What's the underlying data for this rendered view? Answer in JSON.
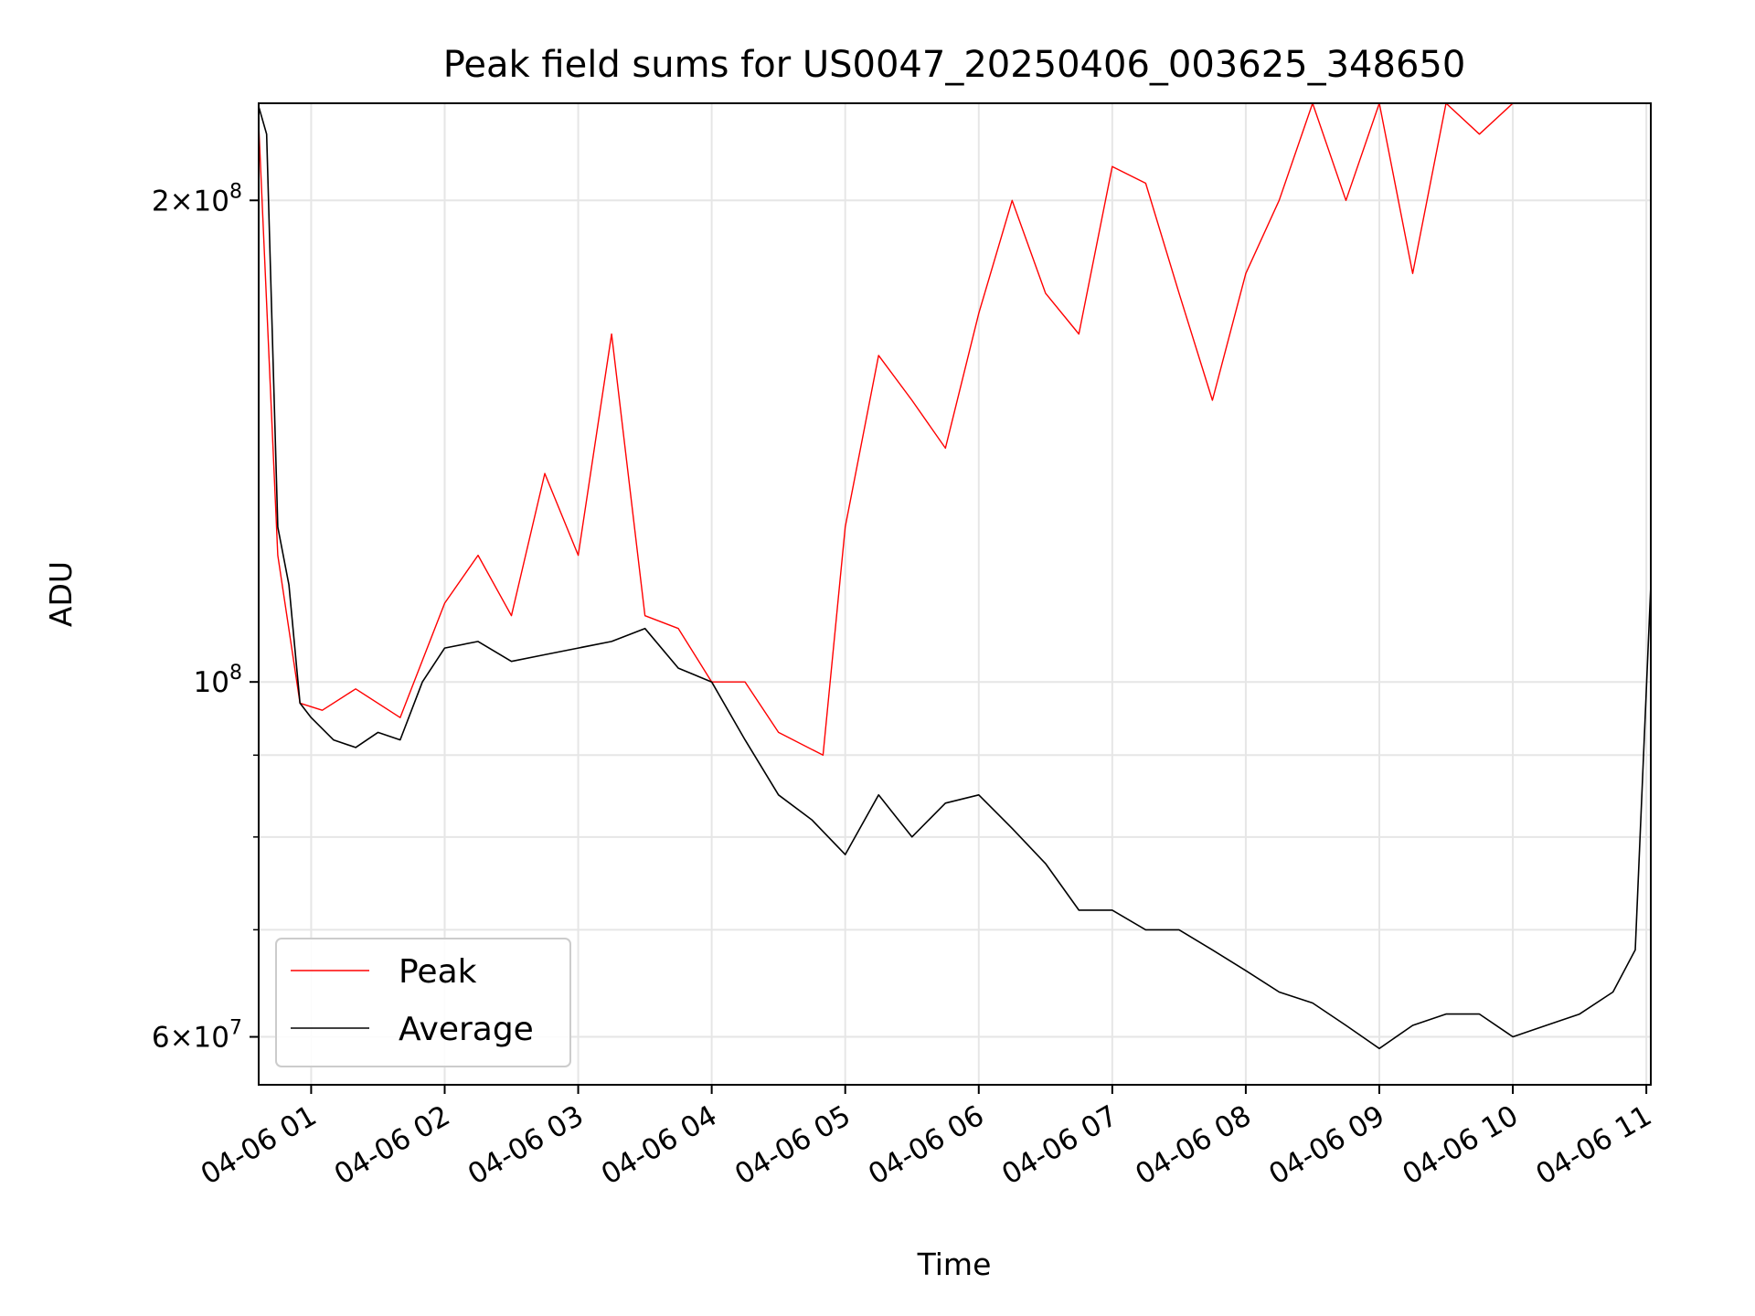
{
  "chart_data": {
    "type": "line",
    "title": "Peak field sums for US0047_20250406_003625_348650",
    "xlabel": "Time",
    "ylabel": "ADU",
    "y_scale": "log",
    "grid": true,
    "legend_placement": "lower-left",
    "x_range": [
      "2025-04-06T00:36:25",
      "2025-04-06T11:02:00"
    ],
    "ylim": [
      56000000,
      230000000
    ],
    "x_tick_labels": [
      "04-06 01",
      "04-06 02",
      "04-06 03",
      "04-06 04",
      "04-06 05",
      "04-06 06",
      "04-06 07",
      "04-06 08",
      "04-06 09",
      "04-06 10",
      "04-06 11"
    ],
    "x_ticks": [
      "2025-04-06T01:00",
      "2025-04-06T02:00",
      "2025-04-06T03:00",
      "2025-04-06T04:00",
      "2025-04-06T05:00",
      "2025-04-06T06:00",
      "2025-04-06T07:00",
      "2025-04-06T08:00",
      "2025-04-06T09:00",
      "2025-04-06T10:00",
      "2025-04-06T11:00"
    ],
    "y_major_ticks": [
      {
        "value": 60000000,
        "mantissa": "6",
        "exponent": "7"
      },
      {
        "value": 100000000,
        "mantissa": "",
        "exponent": "8"
      },
      {
        "value": 200000000,
        "mantissa": "2",
        "exponent": "8"
      }
    ],
    "y_minor_ticks": [
      70000000,
      80000000,
      90000000
    ],
    "series": [
      {
        "name": "Peak",
        "color": "#ff0000",
        "x": [
          "2025-04-06T00:36",
          "2025-04-06T00:45",
          "2025-04-06T00:55",
          "2025-04-06T01:05",
          "2025-04-06T01:20",
          "2025-04-06T01:40",
          "2025-04-06T02:00",
          "2025-04-06T02:15",
          "2025-04-06T02:30",
          "2025-04-06T02:45",
          "2025-04-06T03:00",
          "2025-04-06T03:15",
          "2025-04-06T03:30",
          "2025-04-06T03:45",
          "2025-04-06T04:00",
          "2025-04-06T04:15",
          "2025-04-06T04:30",
          "2025-04-06T04:50",
          "2025-04-06T05:00",
          "2025-04-06T05:15",
          "2025-04-06T05:30",
          "2025-04-06T05:45",
          "2025-04-06T06:00",
          "2025-04-06T06:15",
          "2025-04-06T06:30",
          "2025-04-06T06:45",
          "2025-04-06T07:00",
          "2025-04-06T07:15",
          "2025-04-06T07:30",
          "2025-04-06T07:45",
          "2025-04-06T08:00",
          "2025-04-06T08:15",
          "2025-04-06T08:30",
          "2025-04-06T08:45",
          "2025-04-06T09:00",
          "2025-04-06T09:15",
          "2025-04-06T09:30",
          "2025-04-06T09:45",
          "2025-04-06T10:00",
          "2025-04-06T10:15",
          "2025-04-06T10:30",
          "2025-04-06T10:45",
          "2025-04-06T11:00"
        ],
        "values": [
          230000000,
          120000000,
          97000000,
          96000000,
          99000000,
          95000000,
          112000000,
          120000000,
          110000000,
          135000000,
          120000000,
          165000000,
          110000000,
          108000000,
          100000000,
          100000000,
          93000000,
          90000000,
          125000000,
          160000000,
          150000000,
          140000000,
          170000000,
          200000000,
          175000000,
          165000000,
          210000000,
          205000000,
          175000000,
          150000000,
          180000000,
          200000000,
          230000000,
          200000000,
          230000000,
          180000000,
          230000000,
          220000000,
          230000000,
          230000000,
          230000000,
          230000000,
          230000000
        ]
      },
      {
        "name": "Average",
        "color": "#000000",
        "x": [
          "2025-04-06T00:36",
          "2025-04-06T00:40",
          "2025-04-06T00:45",
          "2025-04-06T00:50",
          "2025-04-06T00:55",
          "2025-04-06T01:00",
          "2025-04-06T01:10",
          "2025-04-06T01:20",
          "2025-04-06T01:30",
          "2025-04-06T01:40",
          "2025-04-06T01:50",
          "2025-04-06T02:00",
          "2025-04-06T02:15",
          "2025-04-06T02:30",
          "2025-04-06T02:45",
          "2025-04-06T03:00",
          "2025-04-06T03:15",
          "2025-04-06T03:30",
          "2025-04-06T03:45",
          "2025-04-06T04:00",
          "2025-04-06T04:15",
          "2025-04-06T04:30",
          "2025-04-06T04:45",
          "2025-04-06T05:00",
          "2025-04-06T05:15",
          "2025-04-06T05:30",
          "2025-04-06T05:45",
          "2025-04-06T06:00",
          "2025-04-06T06:15",
          "2025-04-06T06:30",
          "2025-04-06T06:45",
          "2025-04-06T07:00",
          "2025-04-06T07:15",
          "2025-04-06T07:30",
          "2025-04-06T07:45",
          "2025-04-06T08:00",
          "2025-04-06T08:15",
          "2025-04-06T08:30",
          "2025-04-06T08:45",
          "2025-04-06T09:00",
          "2025-04-06T09:15",
          "2025-04-06T09:30",
          "2025-04-06T09:45",
          "2025-04-06T10:00",
          "2025-04-06T10:15",
          "2025-04-06T10:30",
          "2025-04-06T10:45",
          "2025-04-06T10:55",
          "2025-04-06T11:02"
        ],
        "values": [
          230000000,
          220000000,
          125000000,
          115000000,
          97000000,
          95000000,
          92000000,
          91000000,
          93000000,
          92000000,
          100000000,
          105000000,
          106000000,
          103000000,
          104000000,
          105000000,
          106000000,
          108000000,
          102000000,
          100000000,
          92000000,
          85000000,
          82000000,
          78000000,
          85000000,
          80000000,
          84000000,
          85000000,
          81000000,
          77000000,
          72000000,
          72000000,
          70000000,
          70000000,
          68000000,
          66000000,
          64000000,
          63000000,
          61000000,
          59000000,
          61000000,
          62000000,
          62000000,
          60000000,
          61000000,
          62000000,
          64000000,
          68000000,
          115000000
        ]
      }
    ]
  }
}
